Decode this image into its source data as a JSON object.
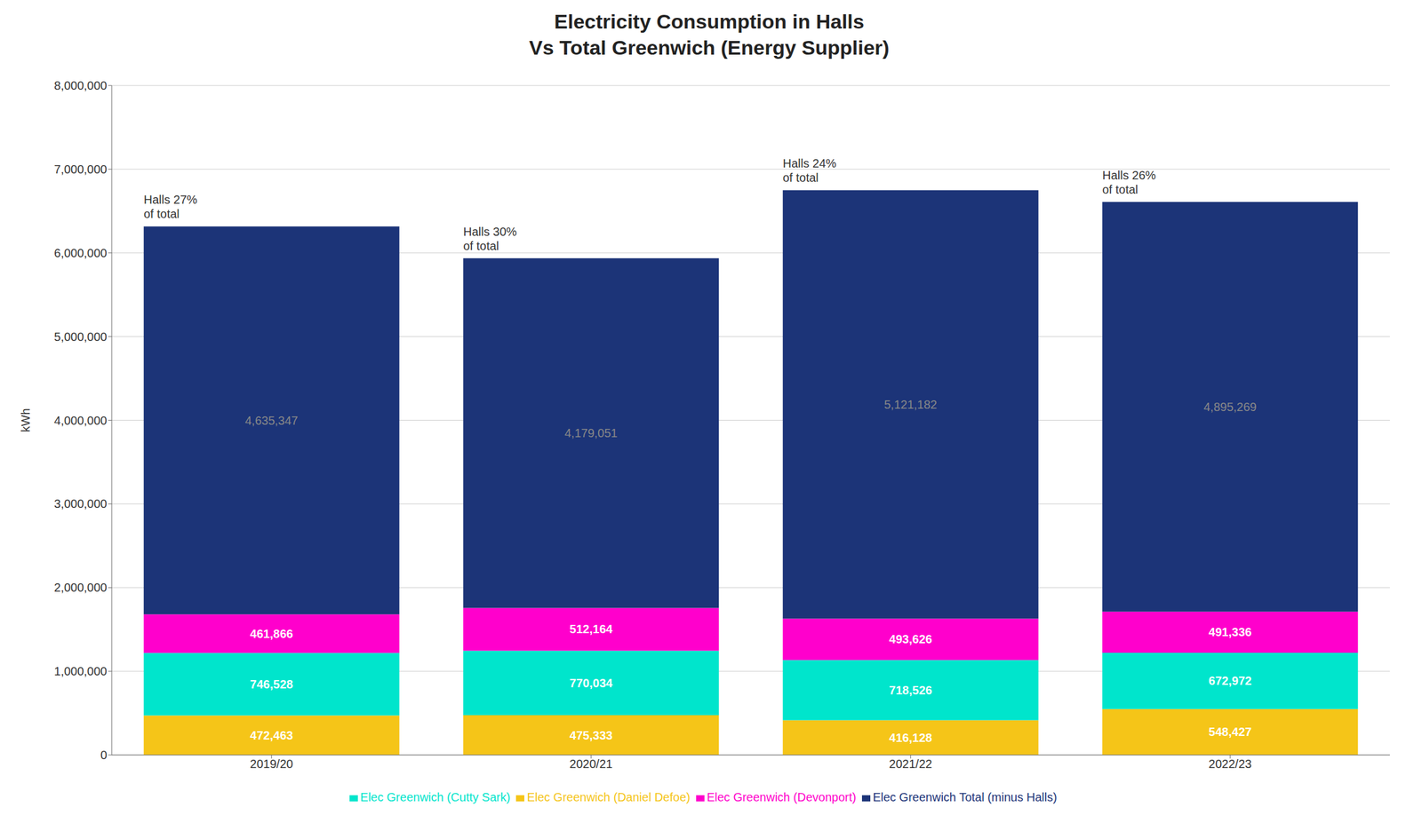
{
  "chart_data": {
    "type": "bar",
    "stacked": true,
    "title": "Electricity Consumption in Halls\nVs Total Greenwich (Energy Supplier)",
    "y_label": "kWh",
    "categories": [
      "2019/20",
      "2020/21",
      "2021/22",
      "2022/23"
    ],
    "series": [
      {
        "name": "Elec Greenwich (Daniel Defoe)",
        "color": "#F5C518",
        "values": [
          472463,
          475333,
          416128,
          548427
        ],
        "value_labels": [
          "472,463",
          "475,333",
          "416,128",
          "548,427"
        ]
      },
      {
        "name": "Elec Greenwich (Cutty Sark)",
        "color": "#00E5CC",
        "values": [
          746528,
          770034,
          718526,
          672972
        ],
        "value_labels": [
          "746,528",
          "770,034",
          "718,526",
          "672,972"
        ]
      },
      {
        "name": "Elec Greenwich (Devonport)",
        "color": "#FF00CC",
        "values": [
          461866,
          512164,
          493626,
          491336
        ],
        "value_labels": [
          "461,866",
          "512,164",
          "493,626",
          "491,336"
        ]
      },
      {
        "name": "Elec Greenwich Total (minus Halls)",
        "color": "#1C3478",
        "values": [
          4635347,
          4179051,
          5121182,
          4895269
        ],
        "value_labels": [
          "4,635,347",
          "4,179,051",
          "5,121,182",
          "4,895,269"
        ]
      }
    ],
    "annotations": [
      "Halls 27%\nof total",
      "Halls 30%\nof total",
      "Halls 24%\nof total",
      "Halls 26%\nof total"
    ],
    "ylim": [
      0,
      8000000
    ],
    "yticks": [
      0,
      {
        "value": 1000000,
        "label": "1,000,000"
      },
      {
        "value": 2000000,
        "label": "2,000,000"
      },
      {
        "value": 3000000,
        "label": "3,000,000"
      },
      {
        "value": 4000000,
        "label": "4,000,000"
      },
      {
        "value": 5000000,
        "label": "5,000,000"
      },
      {
        "value": 6000000,
        "label": "6,000,000"
      },
      {
        "value": 7000000,
        "label": "7,000,000"
      },
      {
        "value": 8000000,
        "label": "8,000,000"
      }
    ],
    "grid": true,
    "data_labels": true,
    "legend": "bottom"
  }
}
